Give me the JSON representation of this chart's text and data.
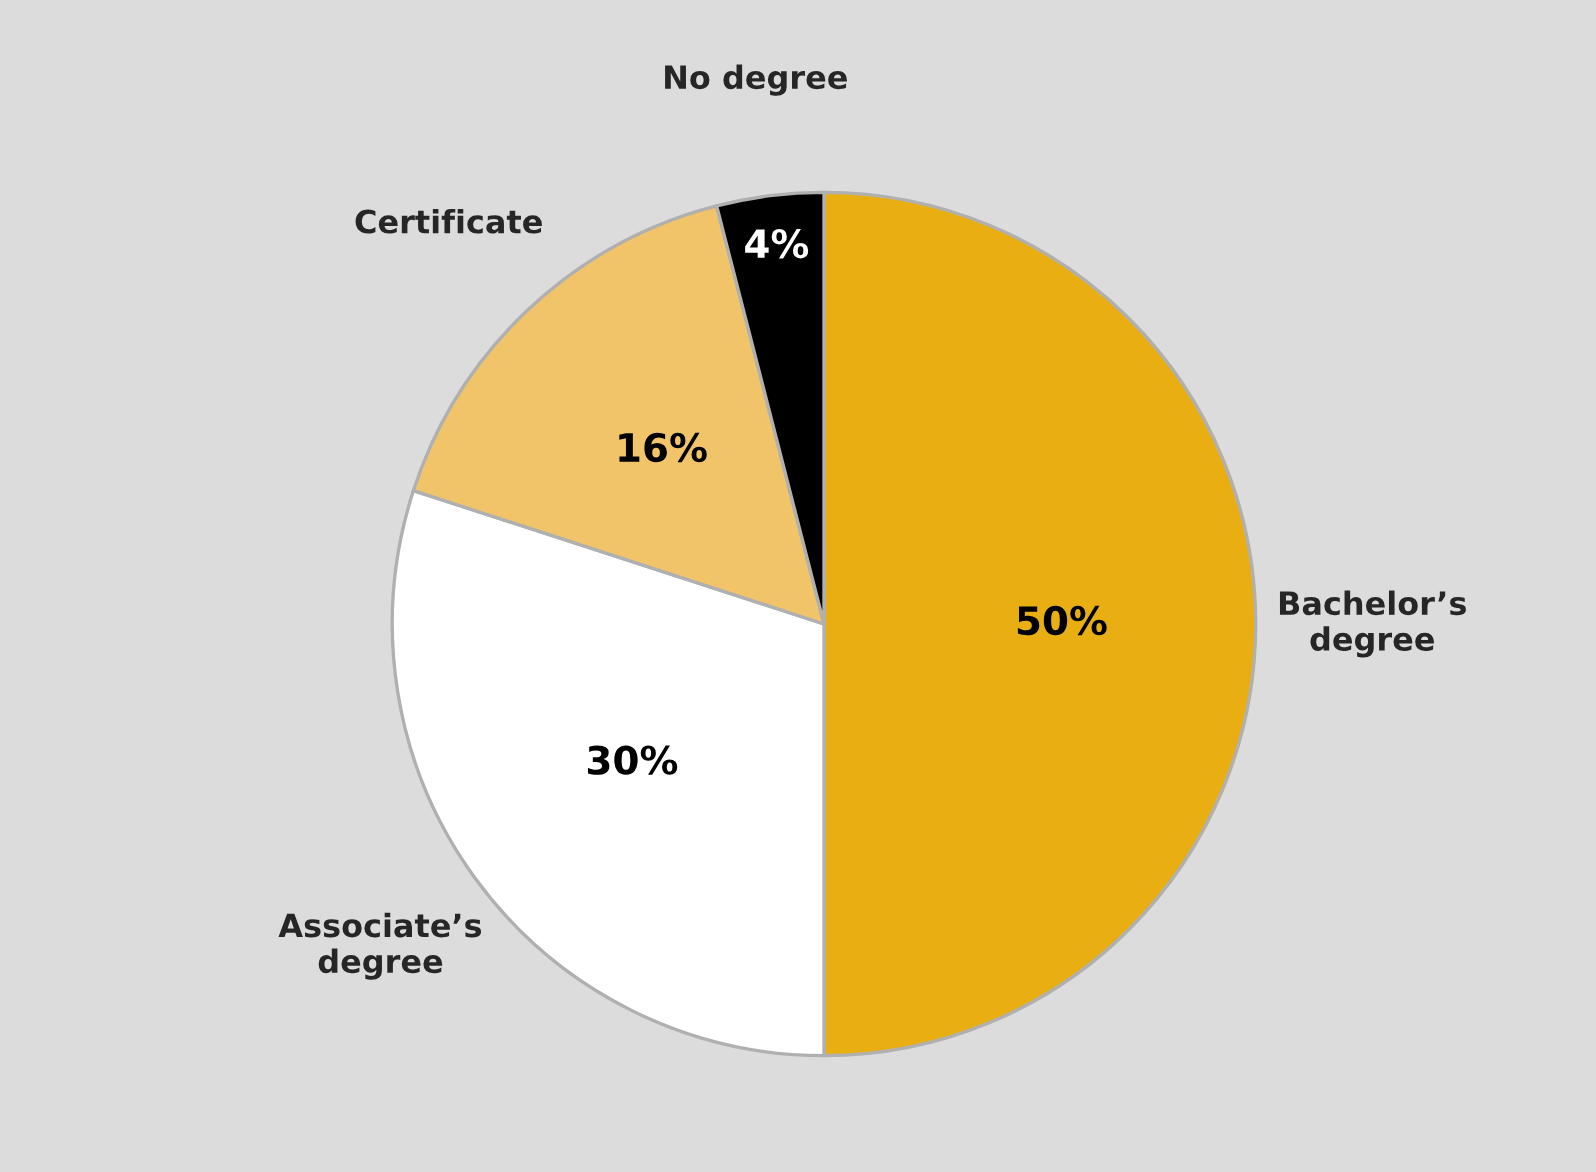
{
  "chart_data": {
    "type": "pie",
    "categories": [
      "Bachelor’s\ndegree",
      "Associate’s\ndegree",
      "Certificate",
      "No degree"
    ],
    "values": [
      50,
      30,
      16,
      4
    ],
    "colors": [
      "#e8ae12",
      "#ffffff",
      "#f2c46a",
      "#000000"
    ],
    "value_labels": [
      "50%",
      "30%",
      "16%",
      "4%"
    ]
  }
}
